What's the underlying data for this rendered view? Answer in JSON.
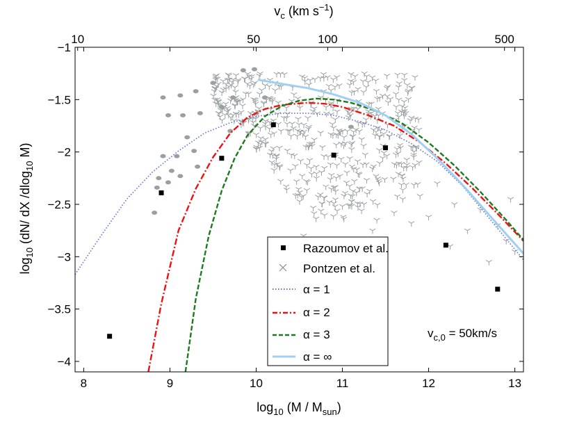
{
  "chart_data": {
    "type": "scatter",
    "x": {
      "label": "log",
      "label_sub": "10",
      "label_rest": " (M / M",
      "label_sub2": "sun",
      "label_end": ")",
      "range": [
        7.9,
        13.1
      ],
      "ticks": [
        8,
        9,
        10,
        11,
        12,
        13
      ],
      "tick_labels": [
        "8",
        "9",
        "10",
        "11",
        "12",
        "13"
      ]
    },
    "y": {
      "label": "log",
      "label_sub": "10",
      "label_rest": " (dN/ dX /dlog",
      "label_sub2": "10",
      "label_end": " M)",
      "range": [
        -4.1,
        -1.0
      ],
      "ticks": [
        -4,
        -3.5,
        -3,
        -2.5,
        -2,
        -1.5,
        -1
      ],
      "tick_labels": [
        "−4",
        "−3.5",
        "−3",
        "−2.5",
        "−2",
        "−1.5",
        "−1"
      ]
    },
    "top_axis": {
      "label": "v",
      "label_sub": "c",
      "label_rest": " (km s",
      "label_sup": "−1",
      "label_end": ")",
      "ticks": [
        {
          "label": "10",
          "x": 7.93
        },
        {
          "label": "50",
          "x": 9.97
        },
        {
          "label": "100",
          "x": 10.83
        },
        {
          "label": "500",
          "x": 12.88
        }
      ]
    },
    "legend": {
      "position": "lower-center",
      "entries": [
        {
          "label": "Razoumov et al.",
          "style": "square-marker",
          "color": "#000000"
        },
        {
          "label": "Pontzen et al.",
          "style": "x-marker",
          "color": "#8c8c8c"
        },
        {
          "label": "α = 1",
          "style": "dotted",
          "color": "#5d6fd0"
        },
        {
          "label": "α = 2",
          "style": "dash-dot",
          "color": "#ee1111"
        },
        {
          "label": "α = 3",
          "style": "dashed",
          "color": "#1e7a1e"
        },
        {
          "label": "α = ∞",
          "style": "solid",
          "color": "#9fcff2"
        }
      ]
    },
    "annotation": {
      "text_main": "v",
      "text_sub": "c,0",
      "text_rest": " = 50km/s"
    },
    "series": [
      {
        "name": "Razoumov et al.",
        "style": "square-marker",
        "color": "#000000",
        "points": [
          [
            8.3,
            -3.76
          ],
          [
            8.9,
            -2.39
          ],
          [
            9.6,
            -2.06
          ],
          [
            10.2,
            -1.74
          ],
          [
            10.9,
            -2.03
          ],
          [
            11.5,
            -1.96
          ],
          [
            12.2,
            -2.89
          ],
          [
            12.8,
            -3.31
          ]
        ]
      },
      {
        "name": "α = 1",
        "style": "dotted",
        "color": "#5d6fd0",
        "points": [
          [
            7.9,
            -3.17
          ],
          [
            8.2,
            -2.8
          ],
          [
            8.5,
            -2.45
          ],
          [
            8.8,
            -2.19
          ],
          [
            9.1,
            -1.99
          ],
          [
            9.4,
            -1.82
          ],
          [
            9.7,
            -1.72
          ],
          [
            10.0,
            -1.66
          ],
          [
            10.3,
            -1.63
          ],
          [
            10.6,
            -1.63
          ],
          [
            10.9,
            -1.65
          ],
          [
            11.2,
            -1.71
          ],
          [
            11.5,
            -1.79
          ],
          [
            11.8,
            -1.92
          ],
          [
            12.1,
            -2.09
          ],
          [
            12.4,
            -2.33
          ],
          [
            12.7,
            -2.63
          ],
          [
            13.1,
            -3.03
          ]
        ]
      },
      {
        "name": "α = 2",
        "style": "dash-dot",
        "color": "#ee1111",
        "points": [
          [
            8.75,
            -4.1
          ],
          [
            8.9,
            -3.45
          ],
          [
            9.1,
            -2.75
          ],
          [
            9.3,
            -2.35
          ],
          [
            9.5,
            -2.05
          ],
          [
            9.7,
            -1.82
          ],
          [
            9.9,
            -1.67
          ],
          [
            10.1,
            -1.59
          ],
          [
            10.3,
            -1.55
          ],
          [
            10.6,
            -1.53
          ],
          [
            10.8,
            -1.54
          ],
          [
            11.0,
            -1.57
          ],
          [
            11.3,
            -1.65
          ],
          [
            11.6,
            -1.75
          ],
          [
            11.9,
            -1.91
          ],
          [
            12.2,
            -2.11
          ],
          [
            12.5,
            -2.34
          ],
          [
            12.8,
            -2.59
          ],
          [
            13.1,
            -2.85
          ]
        ]
      },
      {
        "name": "α = 3",
        "style": "dashed",
        "color": "#1e7a1e",
        "points": [
          [
            9.18,
            -4.1
          ],
          [
            9.3,
            -3.4
          ],
          [
            9.45,
            -2.8
          ],
          [
            9.6,
            -2.37
          ],
          [
            9.75,
            -2.06
          ],
          [
            9.9,
            -1.84
          ],
          [
            10.1,
            -1.66
          ],
          [
            10.3,
            -1.56
          ],
          [
            10.5,
            -1.51
          ],
          [
            10.7,
            -1.49
          ],
          [
            10.9,
            -1.5
          ],
          [
            11.1,
            -1.53
          ],
          [
            11.4,
            -1.61
          ],
          [
            11.7,
            -1.73
          ],
          [
            12.0,
            -1.91
          ],
          [
            12.3,
            -2.13
          ],
          [
            12.6,
            -2.38
          ],
          [
            12.9,
            -2.65
          ],
          [
            13.1,
            -2.84
          ]
        ]
      },
      {
        "name": "α = ∞",
        "style": "solid",
        "color": "#9fcff2",
        "points": [
          [
            10.02,
            -1.31
          ],
          [
            10.3,
            -1.35
          ],
          [
            10.6,
            -1.39
          ],
          [
            10.9,
            -1.45
          ],
          [
            11.2,
            -1.53
          ],
          [
            11.5,
            -1.65
          ],
          [
            11.8,
            -1.83
          ],
          [
            12.1,
            -2.06
          ],
          [
            12.4,
            -2.32
          ],
          [
            12.7,
            -2.6
          ],
          [
            13.1,
            -2.97
          ]
        ]
      }
    ],
    "pontzen_scatter": {
      "name": "Pontzen et al.",
      "style": "x-marker",
      "color": "#9aa0a0",
      "left_blobs": [
        [
          8.92,
          -1.48
        ],
        [
          8.98,
          -1.65
        ],
        [
          9.12,
          -1.46
        ],
        [
          9.15,
          -1.65
        ],
        [
          9.3,
          -1.42
        ],
        [
          9.2,
          -1.86
        ],
        [
          9.28,
          -1.99
        ],
        [
          9.08,
          -2.04
        ],
        [
          8.92,
          -2.04
        ],
        [
          9.02,
          -2.18
        ],
        [
          9.12,
          -2.23
        ],
        [
          8.98,
          -2.29
        ],
        [
          8.85,
          -2.34
        ],
        [
          8.87,
          -2.25
        ],
        [
          8.82,
          -2.58
        ],
        [
          9.35,
          -1.63
        ],
        [
          9.32,
          -2.14
        ],
        [
          9.5,
          -1.34
        ],
        [
          9.6,
          -1.57
        ],
        [
          9.73,
          -1.48
        ],
        [
          9.85,
          -1.22
        ],
        [
          9.98,
          -1.21
        ],
        [
          10.1,
          -1.48
        ],
        [
          9.7,
          -1.8
        ],
        [
          11.1,
          -1.76
        ]
      ],
      "dense_region": {
        "x": [
          9.5,
          11.9
        ],
        "y_top": -1.25
      },
      "sparse_points": [
        [
          11.6,
          -2.58
        ],
        [
          11.8,
          -2.68
        ],
        [
          12.0,
          -2.62
        ],
        [
          12.1,
          -2.3
        ],
        [
          12.3,
          -2.5
        ],
        [
          12.6,
          -2.55
        ],
        [
          12.9,
          -2.85
        ],
        [
          12.7,
          -3.05
        ],
        [
          13.0,
          -2.95
        ],
        [
          11.2,
          -2.95
        ],
        [
          11.0,
          -2.85
        ],
        [
          11.35,
          -2.75
        ],
        [
          10.55,
          -2.8
        ],
        [
          10.75,
          -2.95
        ],
        [
          11.4,
          -2.65
        ],
        [
          12.25,
          -2.9
        ],
        [
          12.45,
          -2.75
        ],
        [
          12.8,
          -2.7
        ],
        [
          11.9,
          -2.42
        ],
        [
          12.95,
          -2.45
        ],
        [
          11.7,
          -2.45
        ]
      ]
    }
  }
}
